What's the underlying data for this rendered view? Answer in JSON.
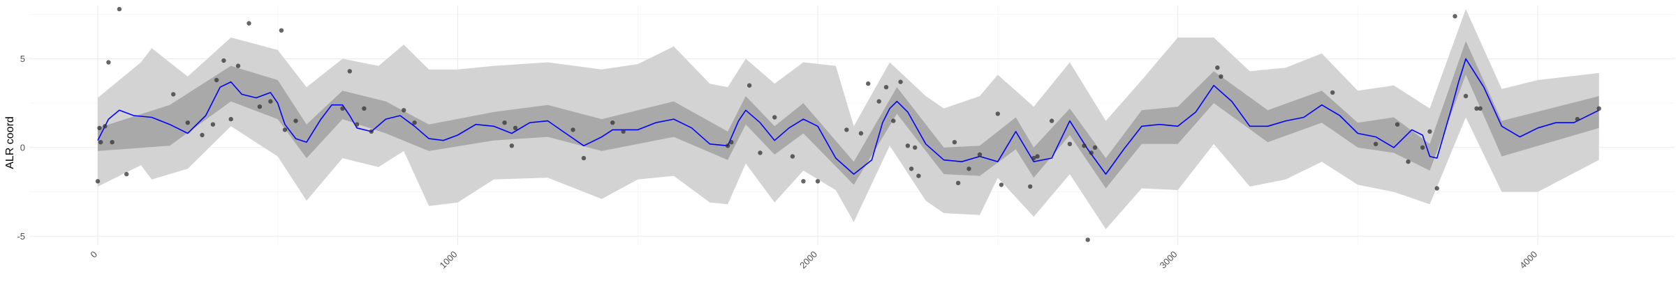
{
  "chart_data": {
    "type": "line",
    "title": "",
    "xlabel": "",
    "ylabel": "ALR coord",
    "xlim": [
      -190,
      4380
    ],
    "ylim": [
      -5.5,
      8.0
    ],
    "x_ticks": [
      0,
      1000,
      2000,
      3000,
      4000
    ],
    "x_tick_labels": [
      "0",
      "1000",
      "2000",
      "3000",
      "4000"
    ],
    "y_ticks": [
      -5,
      0,
      5
    ],
    "y_tick_labels": [
      "-5",
      "0",
      "5"
    ],
    "grid": true,
    "legend": "none",
    "colors": {
      "mean_line": "#0000ff",
      "inner_band": "#a9a9a9",
      "outer_band": "#d3d3d3",
      "points": "#333333"
    },
    "series": [
      {
        "role": "mean",
        "x": [
          0,
          30,
          60,
          100,
          150,
          200,
          250,
          300,
          340,
          370,
          400,
          440,
          480,
          500,
          520,
          550,
          580,
          620,
          650,
          680,
          700,
          720,
          760,
          800,
          840,
          880,
          920,
          960,
          1000,
          1050,
          1100,
          1150,
          1200,
          1250,
          1300,
          1350,
          1400,
          1430,
          1460,
          1500,
          1550,
          1600,
          1650,
          1700,
          1750,
          1780,
          1800,
          1840,
          1880,
          1920,
          1960,
          2000,
          2050,
          2100,
          2150,
          2180,
          2200,
          2220,
          2250,
          2300,
          2350,
          2400,
          2450,
          2500,
          2550,
          2600,
          2650,
          2700,
          2750,
          2800,
          2850,
          2900,
          2950,
          3000,
          3050,
          3100,
          3150,
          3200,
          3250,
          3300,
          3350,
          3400,
          3450,
          3500,
          3550,
          3600,
          3650,
          3680,
          3700,
          3720,
          3740,
          3760,
          3780,
          3800,
          3850,
          3900,
          3950,
          4000,
          4050,
          4100,
          4170
        ],
        "y": [
          0.4,
          1.6,
          2.1,
          1.8,
          1.7,
          1.3,
          0.8,
          1.8,
          3.4,
          3.7,
          3.0,
          2.8,
          3.1,
          2.5,
          1.3,
          0.5,
          0.3,
          1.6,
          2.4,
          2.4,
          1.8,
          1.1,
          0.9,
          1.6,
          1.8,
          1.2,
          0.5,
          0.4,
          0.7,
          1.3,
          1.2,
          0.8,
          1.4,
          1.5,
          0.8,
          0.1,
          0.6,
          1.0,
          1.0,
          1.0,
          1.4,
          1.6,
          1.1,
          0.2,
          0.1,
          1.5,
          2.1,
          1.4,
          0.4,
          1.1,
          1.6,
          1.2,
          -0.6,
          -1.5,
          -0.7,
          1.4,
          2.2,
          2.6,
          2.0,
          0.2,
          -0.7,
          -0.8,
          -0.5,
          -0.8,
          0.9,
          -0.8,
          -0.6,
          1.5,
          -0.1,
          -1.5,
          -0.1,
          1.2,
          1.3,
          1.2,
          2.0,
          3.5,
          2.6,
          1.2,
          1.2,
          1.5,
          1.7,
          2.4,
          1.8,
          0.8,
          0.6,
          0.0,
          1.0,
          0.7,
          -0.5,
          -0.6,
          0.8,
          2.2,
          3.7,
          5.0,
          3.4,
          1.2,
          0.6,
          1.1,
          1.4,
          1.4,
          2.1
        ]
      },
      {
        "role": "inner_band",
        "x": [
          0,
          200,
          370,
          500,
          580,
          680,
          800,
          920,
          1100,
          1250,
          1400,
          1600,
          1750,
          1800,
          1880,
          1960,
          2100,
          2220,
          2350,
          2450,
          2550,
          2600,
          2700,
          2800,
          2900,
          3000,
          3100,
          3250,
          3400,
          3500,
          3600,
          3700,
          3800,
          3900,
          4170
        ],
        "lower": [
          -0.2,
          0.1,
          2.6,
          1.6,
          -0.6,
          1.6,
          0.8,
          -0.2,
          0.4,
          0.6,
          -0.2,
          0.6,
          -0.7,
          1.3,
          -0.4,
          0.8,
          -2.1,
          1.9,
          -1.5,
          -1.6,
          -0.1,
          -1.7,
          0.7,
          -2.3,
          0.2,
          0.2,
          2.5,
          0.3,
          1.4,
          0.0,
          -0.3,
          -1.3,
          4.1,
          -0.5,
          1.1
        ],
        "upper": [
          1.1,
          2.4,
          4.6,
          3.8,
          1.3,
          3.2,
          2.6,
          1.3,
          2.0,
          2.4,
          1.6,
          2.6,
          0.9,
          2.9,
          1.2,
          2.5,
          -0.8,
          3.4,
          0.0,
          0.1,
          1.7,
          0.0,
          2.2,
          -0.6,
          2.1,
          2.3,
          4.3,
          2.1,
          3.2,
          1.4,
          1.7,
          0.2,
          6.0,
          1.5,
          2.9
        ]
      },
      {
        "role": "outer_band",
        "x": [
          0,
          120,
          150,
          250,
          370,
          500,
          580,
          680,
          780,
          850,
          920,
          1000,
          1100,
          1250,
          1400,
          1500,
          1600,
          1700,
          1750,
          1800,
          1880,
          1960,
          2050,
          2100,
          2200,
          2300,
          2350,
          2450,
          2500,
          2600,
          2700,
          2800,
          2900,
          3000,
          3100,
          3200,
          3300,
          3400,
          3500,
          3600,
          3700,
          3800,
          3900,
          4000,
          4170
        ],
        "lower": [
          -2.2,
          -1.0,
          -1.8,
          -1.2,
          1.2,
          -0.5,
          -3.0,
          -0.6,
          -1.1,
          -0.2,
          -3.3,
          -3.1,
          -1.8,
          -1.7,
          -2.9,
          -1.8,
          -1.6,
          -3.1,
          -3.2,
          -0.9,
          -3.1,
          -1.3,
          -2.4,
          -4.2,
          0.1,
          -3.0,
          -3.7,
          -3.8,
          -1.7,
          -3.9,
          -1.5,
          -4.6,
          -2.3,
          -2.4,
          0.2,
          -2.2,
          -1.8,
          -0.8,
          -2.1,
          -2.5,
          -3.2,
          1.7,
          -2.5,
          -2.5,
          -0.7
        ],
        "upper": [
          2.8,
          4.8,
          5.6,
          4.0,
          6.2,
          5.5,
          3.4,
          5.0,
          4.6,
          5.8,
          4.4,
          4.4,
          4.6,
          4.8,
          4.4,
          4.7,
          5.7,
          3.6,
          3.4,
          5.0,
          3.6,
          4.8,
          4.6,
          1.2,
          4.8,
          2.9,
          2.2,
          2.9,
          4.1,
          2.3,
          4.8,
          1.5,
          3.8,
          6.2,
          6.2,
          4.3,
          4.5,
          5.3,
          3.2,
          3.5,
          2.2,
          7.8,
          3.3,
          3.8,
          4.2
        ]
      },
      {
        "role": "observations",
        "x": [
          0,
          5,
          8,
          20,
          30,
          40,
          60,
          80,
          210,
          250,
          290,
          320,
          330,
          350,
          370,
          390,
          420,
          450,
          480,
          510,
          520,
          550,
          680,
          700,
          720,
          740,
          760,
          850,
          880,
          1130,
          1150,
          1160,
          1320,
          1350,
          1430,
          1460,
          1750,
          1760,
          1810,
          1840,
          1880,
          1930,
          1960,
          2000,
          2080,
          2120,
          2140,
          2170,
          2190,
          2210,
          2230,
          2250,
          2260,
          2270,
          2280,
          2380,
          2390,
          2420,
          2450,
          2500,
          2510,
          2590,
          2600,
          2610,
          2650,
          2700,
          2740,
          2750,
          2760,
          2770,
          3110,
          3120,
          3430,
          3550,
          3610,
          3640,
          3680,
          3700,
          3720,
          3770,
          3800,
          3830,
          3840,
          4110,
          4170
        ],
        "y": [
          -1.9,
          1.1,
          0.3,
          1.2,
          4.8,
          0.3,
          7.8,
          -1.5,
          3.0,
          1.4,
          0.7,
          1.3,
          3.8,
          4.9,
          1.6,
          4.6,
          7.0,
          2.3,
          2.6,
          6.6,
          1.0,
          1.5,
          2.2,
          4.3,
          1.3,
          2.2,
          0.9,
          2.1,
          1.4,
          1.4,
          0.1,
          1.1,
          1.0,
          -0.6,
          1.4,
          0.9,
          0.1,
          0.3,
          3.5,
          -0.3,
          1.7,
          -0.5,
          -1.9,
          -1.9,
          1.0,
          0.8,
          3.6,
          2.6,
          3.4,
          1.5,
          3.7,
          0.1,
          -1.2,
          0.0,
          -1.6,
          0.3,
          -2.0,
          -1.2,
          -0.4,
          1.9,
          -2.1,
          -2.2,
          -0.6,
          -0.5,
          1.5,
          0.2,
          0.1,
          -5.2,
          -0.3,
          0.0,
          4.5,
          4.0,
          3.1,
          0.2,
          1.3,
          -0.8,
          0.0,
          0.9,
          -2.3,
          7.4,
          2.9,
          2.2,
          2.2,
          1.6,
          2.2
        ]
      }
    ]
  }
}
